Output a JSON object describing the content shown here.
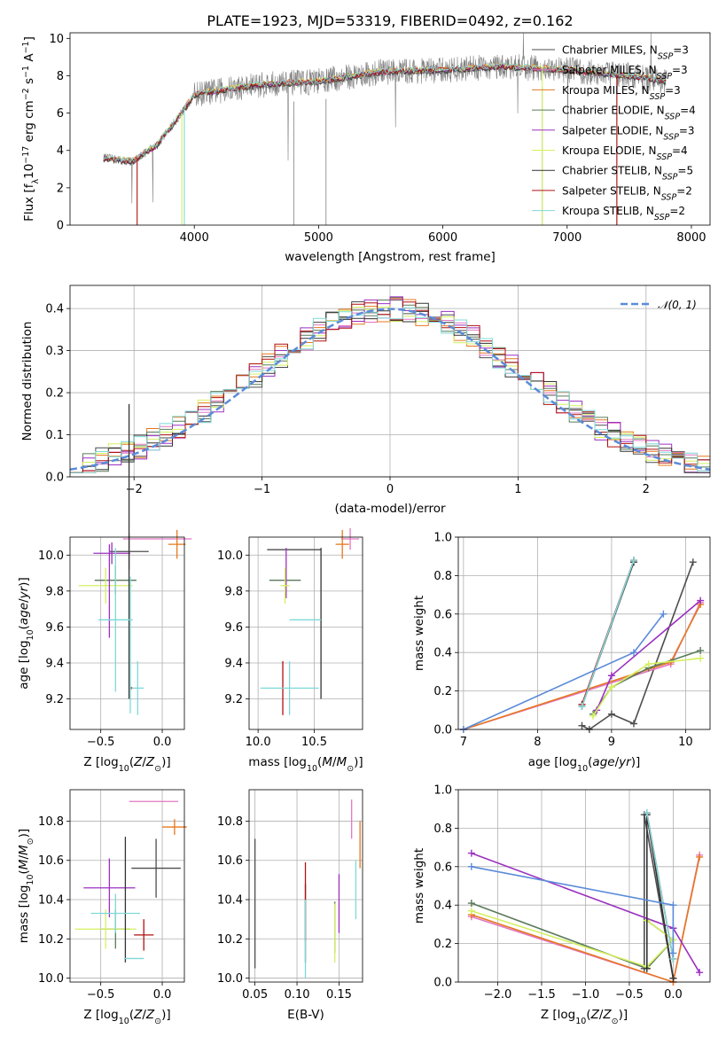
{
  "figure": {
    "title": "PLATE=1923, MJD=53319, FIBERID=0492, z=0.162"
  },
  "models": [
    {
      "name": "Chabrier MILES",
      "nssp": 3,
      "color": "#4d4d4d"
    },
    {
      "name": "Salpeter MILES",
      "nssp": 3,
      "color": "#e377c2"
    },
    {
      "name": "Kroupa MILES",
      "nssp": 3,
      "color": "#e6781e"
    },
    {
      "name": "Chabrier ELODIE",
      "nssp": 4,
      "color": "#5a7a5a"
    },
    {
      "name": "Salpeter ELODIE",
      "nssp": 3,
      "color": "#9b30c0"
    },
    {
      "name": "Kroupa ELODIE",
      "nssp": 4,
      "color": "#d4f060"
    },
    {
      "name": "Chabrier STELIB",
      "nssp": 5,
      "color": "#333333"
    },
    {
      "name": "Salpeter STELIB",
      "nssp": 2,
      "color": "#b01010"
    },
    {
      "name": "Kroupa STELIB",
      "nssp": 2,
      "color": "#7fd8d8"
    }
  ],
  "chart_data": [
    {
      "id": "spectrum",
      "type": "line",
      "title": "PLATE=1923, MJD=53319, FIBERID=0492, z=0.162",
      "xlabel": "wavelength [Angstrom, rest frame]",
      "ylabel": "Flux [f_λ 10^-17 erg cm^-2 s^-1 A^-1]",
      "xlim": [
        3000,
        8150
      ],
      "ylim": [
        0,
        10.3
      ],
      "xticks": [
        4000,
        5000,
        6000,
        7000,
        8000
      ],
      "yticks": [
        0,
        2,
        4,
        6,
        8,
        10
      ],
      "legend_position": "top-right",
      "legend": [
        "Chabrier MILES, N_SSP=3",
        "Salpeter MILES, N_SSP=3",
        "Kroupa MILES, N_SSP=3",
        "Chabrier ELODIE, N_SSP=4",
        "Salpeter ELODIE, N_SSP=3",
        "Kroupa ELODIE, N_SSP=4",
        "Chabrier STELIB, N_SSP=5",
        "Salpeter STELIB, N_SSP=2",
        "Kroupa STELIB, N_SSP=2"
      ],
      "data_continuum": {
        "x": [
          3270,
          3500,
          3700,
          3900,
          4000,
          4200,
          4500,
          5000,
          5500,
          6000,
          6500,
          7000,
          7500,
          7800
        ],
        "y": [
          3.6,
          3.4,
          4.3,
          6.0,
          7.0,
          7.2,
          7.5,
          7.7,
          8.2,
          8.3,
          8.5,
          8.3,
          8.0,
          7.7
        ]
      },
      "model_cut_lines": [
        {
          "series": "Salpeter STELIB",
          "x": 3540
        },
        {
          "series": "Kroupa ELODIE",
          "x": 3900
        },
        {
          "series": "Kroupa STELIB",
          "x": 3920
        },
        {
          "series": "Kroupa ELODIE",
          "x": 6800
        },
        {
          "series": "Salpeter STELIB",
          "x": 7400
        }
      ]
    },
    {
      "id": "residuals",
      "type": "line",
      "xlabel": "(data-model)/error",
      "ylabel": "Normed distribution",
      "xlim": [
        -2.5,
        2.5
      ],
      "ylim": [
        0,
        0.455
      ],
      "xticks": [
        -2,
        -1,
        0,
        1,
        2
      ],
      "yticks": [
        0.0,
        0.1,
        0.2,
        0.3,
        0.4
      ],
      "grid": true,
      "legend_position": "top-right",
      "reference_curve": {
        "name": "N(0,1)",
        "mean": 0,
        "sigma": 1,
        "color": "#5b8bd9"
      },
      "bin_width": 0.1,
      "bins_start": -2.5
    },
    {
      "id": "age_vs_Z",
      "type": "scatter",
      "xlabel": "Z [log10(Z/Z_sun)]",
      "ylabel": "age  [log10(age/yr)]",
      "xlim": [
        -0.75,
        0.18
      ],
      "ylim": [
        9.03,
        10.1
      ],
      "xticks": [
        -0.5,
        0.0
      ],
      "yticks": [
        9.2,
        9.4,
        9.6,
        9.8,
        10.0
      ],
      "grid": true,
      "points": [
        {
          "series": "Chabrier MILES",
          "x": -0.27,
          "y": 10.02,
          "xerr": 0.16,
          "yerr": 0.1
        },
        {
          "series": "Salpeter MILES",
          "x": -0.04,
          "y": 10.09,
          "xerr": 0.28,
          "yerr": 0.0
        },
        {
          "series": "Kroupa MILES",
          "x": 0.12,
          "y": 10.06,
          "xerr": 0.07,
          "yerr": 0.08
        },
        {
          "series": "Chabrier ELODIE",
          "x": -0.38,
          "y": 9.86,
          "xerr": 0.17,
          "yerr": 0.08
        },
        {
          "series": "Salpeter ELODIE",
          "x": -0.41,
          "y": 10.01,
          "xerr": 0.15,
          "yerr": 0.06
        },
        {
          "series": "Kroupa ELODIE",
          "x": -0.46,
          "y": 9.83,
          "xerr": 0.22,
          "yerr": 0.1
        },
        {
          "series": "Chabrier STELIB",
          "x": -0.27,
          "y": 10.02,
          "xerr": 0.0,
          "yerr": 0.82
        },
        {
          "series": "Salpeter STELIB",
          "x": -0.25,
          "y": 9.26,
          "xerr": 0.0,
          "yerr": 0.0
        },
        {
          "series": "Kroupa STELIB",
          "x": -0.2,
          "y": 9.26,
          "xerr": 0.05,
          "yerr": 0.15
        },
        {
          "series": "Salpeter ELODIE",
          "x": -0.43,
          "y": 9.8,
          "xerr": 0.0,
          "yerr": 0.26
        },
        {
          "series": "Kroupa STELIB",
          "x": -0.38,
          "y": 9.64,
          "xerr": 0.14,
          "yerr": 0.4
        },
        {
          "series": "Kroupa STELIB",
          "x": -0.26,
          "y": 9.5,
          "xerr": 0.0,
          "yerr": 0.38
        }
      ]
    },
    {
      "id": "age_vs_mass",
      "type": "scatter",
      "xlabel": "mass [log10(M/M_sun)]",
      "ylabel": "",
      "xlim": [
        9.92,
        10.93
      ],
      "ylim": [
        9.03,
        10.1
      ],
      "xticks": [
        10.0,
        10.5
      ],
      "yticks": [
        9.2,
        9.4,
        9.6,
        9.8,
        10.0
      ],
      "grid": true,
      "points": [
        {
          "series": "Chabrier MILES",
          "x": 10.32,
          "y": 10.03,
          "xerr": 0.24,
          "yerr": 0.0
        },
        {
          "series": "Salpeter MILES",
          "x": 10.82,
          "y": 10.09,
          "xerr": 0.08,
          "yerr": 0.06
        },
        {
          "series": "Kroupa MILES",
          "x": 10.75,
          "y": 10.06,
          "xerr": 0.06,
          "yerr": 0.08
        },
        {
          "series": "Chabrier ELODIE",
          "x": 10.24,
          "y": 9.86,
          "xerr": 0.14,
          "yerr": 0.0
        },
        {
          "series": "Salpeter ELODIE",
          "x": 10.25,
          "y": 9.9,
          "xerr": 0.0,
          "yerr": 0.14
        },
        {
          "series": "Kroupa ELODIE",
          "x": 10.24,
          "y": 9.83,
          "xerr": 0.04,
          "yerr": 0.1
        },
        {
          "series": "Chabrier STELIB",
          "x": 10.56,
          "y": 9.62,
          "xerr": 0.0,
          "yerr": 0.42
        },
        {
          "series": "Salpeter STELIB",
          "x": 10.22,
          "y": 9.26,
          "xerr": 0.0,
          "yerr": 0.15
        },
        {
          "series": "Kroupa STELIB",
          "x": 10.28,
          "y": 9.26,
          "xerr": 0.26,
          "yerr": 0.15
        },
        {
          "series": "Kroupa STELIB",
          "x": 10.42,
          "y": 9.64,
          "xerr": 0.14,
          "yerr": 0.0
        }
      ]
    },
    {
      "id": "massweight_vs_age",
      "type": "line",
      "xlabel": "age  [log10(age/yr)]",
      "ylabel": "mass weight",
      "xlim": [
        6.93,
        10.33
      ],
      "ylim": [
        0,
        1.0
      ],
      "xticks": [
        7,
        8,
        9,
        10
      ],
      "yticks": [
        0.0,
        0.2,
        0.4,
        0.6,
        0.8,
        1.0
      ],
      "grid": true,
      "series": [
        {
          "name": "Chabrier MILES",
          "x": [
            8.6,
            8.7,
            9.0,
            9.3,
            10.1
          ],
          "y": [
            0.02,
            0.0,
            0.08,
            0.03,
            0.87
          ]
        },
        {
          "name": "Salpeter MILES",
          "x": [
            7.0,
            9.8,
            10.2
          ],
          "y": [
            0.0,
            0.34,
            0.66
          ]
        },
        {
          "name": "Kroupa MILES",
          "x": [
            7.0,
            9.8,
            10.2
          ],
          "y": [
            0.0,
            0.35,
            0.65
          ]
        },
        {
          "name": "Chabrier ELODIE",
          "x": [
            8.75,
            9.0,
            9.5,
            10.2
          ],
          "y": [
            0.08,
            0.22,
            0.32,
            0.41
          ]
        },
        {
          "name": "Salpeter ELODIE",
          "x": [
            8.8,
            9.0,
            10.2
          ],
          "y": [
            0.1,
            0.28,
            0.67
          ]
        },
        {
          "name": "Kroupa ELODIE",
          "x": [
            8.75,
            9.0,
            9.5,
            10.2
          ],
          "y": [
            0.07,
            0.22,
            0.34,
            0.37
          ]
        },
        {
          "name": "Chabrier STELIB",
          "x": [
            8.6,
            9.3
          ],
          "y": [
            0.12,
            0.87
          ]
        },
        {
          "name": "Salpeter STELIB",
          "x": [
            8.6,
            9.3
          ],
          "y": [
            0.13,
            0.88
          ]
        },
        {
          "name": "Kroupa STELIB",
          "x": [
            8.6,
            9.3
          ],
          "y": [
            0.12,
            0.88
          ]
        },
        {
          "name": "Blue model",
          "x": [
            7.0,
            9.3,
            9.7
          ],
          "y": [
            0.0,
            0.4,
            0.6
          ]
        }
      ]
    },
    {
      "id": "mass_vs_Z",
      "type": "scatter",
      "xlabel": "Z [log10(Z/Z_sun)]",
      "ylabel": "mass [log10(M/M_sun)]",
      "xlim": [
        -0.75,
        0.18
      ],
      "ylim": [
        9.98,
        10.96
      ],
      "xticks": [
        -0.5,
        0.0
      ],
      "yticks": [
        10.0,
        10.2,
        10.4,
        10.6,
        10.8
      ],
      "grid": true,
      "points": [
        {
          "series": "Chabrier MILES",
          "x": -0.05,
          "y": 10.56,
          "xerr": 0.2,
          "yerr": 0.15
        },
        {
          "series": "Salpeter MILES",
          "x": -0.07,
          "y": 10.9,
          "xerr": 0.2,
          "yerr": 0.0
        },
        {
          "series": "Kroupa MILES",
          "x": 0.1,
          "y": 10.77,
          "xerr": 0.1,
          "yerr": 0.04
        },
        {
          "series": "Chabrier ELODIE",
          "x": -0.38,
          "y": 10.25,
          "xerr": 0.12,
          "yerr": 0.1
        },
        {
          "series": "Salpeter ELODIE",
          "x": -0.43,
          "y": 10.46,
          "xerr": 0.21,
          "yerr": 0.15
        },
        {
          "series": "Kroupa ELODIE",
          "x": -0.46,
          "y": 10.25,
          "xerr": 0.25,
          "yerr": 0.1
        },
        {
          "series": "Chabrier STELIB",
          "x": -0.3,
          "y": 10.4,
          "xerr": 0.0,
          "yerr": 0.32
        },
        {
          "series": "Salpeter STELIB",
          "x": -0.15,
          "y": 10.22,
          "xerr": 0.08,
          "yerr": 0.08
        },
        {
          "series": "Kroupa STELIB",
          "x": -0.23,
          "y": 10.1,
          "xerr": 0.08,
          "yerr": 0.0
        },
        {
          "series": "Kroupa STELIB",
          "x": -0.38,
          "y": 10.33,
          "xerr": 0.2,
          "yerr": 0.1
        }
      ]
    },
    {
      "id": "mass_vs_EBV",
      "type": "scatter",
      "xlabel": "E(B-V)",
      "ylabel": "",
      "xlim": [
        0.043,
        0.178
      ],
      "ylim": [
        9.98,
        10.96
      ],
      "xticks": [
        0.05,
        0.1,
        0.15
      ],
      "yticks": [
        10.0,
        10.2,
        10.4,
        10.6,
        10.8
      ],
      "grid": true,
      "points": [
        {
          "series": "Chabrier MILES",
          "x": 0.05,
          "y": 10.38,
          "xerr": 0.0,
          "yerr": 0.33
        },
        {
          "series": "Salpeter MILES",
          "x": 0.165,
          "y": 10.81,
          "xerr": 0.0,
          "yerr": 0.1
        },
        {
          "series": "Kroupa MILES",
          "x": 0.175,
          "y": 10.68,
          "xerr": 0.0,
          "yerr": 0.12
        },
        {
          "series": "Chabrier ELODIE",
          "x": 0.145,
          "y": 10.26,
          "xerr": 0.0,
          "yerr": 0.13
        },
        {
          "series": "Salpeter ELODIE",
          "x": 0.15,
          "y": 10.38,
          "xerr": 0.0,
          "yerr": 0.15
        },
        {
          "series": "Kroupa ELODIE",
          "x": 0.145,
          "y": 10.23,
          "xerr": 0.0,
          "yerr": 0.15
        },
        {
          "series": "Chabrier STELIB",
          "x": 0.11,
          "y": 10.28,
          "xerr": 0.0,
          "yerr": 0.2
        },
        {
          "series": "Salpeter STELIB",
          "x": 0.11,
          "y": 10.39,
          "xerr": 0.0,
          "yerr": 0.2
        },
        {
          "series": "Kroupa STELIB",
          "x": 0.11,
          "y": 10.2,
          "xerr": 0.0,
          "yerr": 0.2
        },
        {
          "series": "Kroupa STELIB",
          "x": 0.17,
          "y": 10.45,
          "xerr": 0.0,
          "yerr": 0.15
        }
      ]
    },
    {
      "id": "massweight_vs_Z",
      "type": "line",
      "xlabel": "Z [log10(Z/Z_sun)]",
      "ylabel": "mass weight",
      "xlim": [
        -2.45,
        0.42
      ],
      "ylim": [
        0,
        1.0
      ],
      "xticks": [
        -2.0,
        -1.5,
        -1.0,
        -0.5,
        0.0
      ],
      "yticks": [
        0.0,
        0.2,
        0.4,
        0.6,
        0.8,
        1.0
      ],
      "grid": true,
      "series": [
        {
          "name": "Chabrier MILES",
          "x": [
            -0.33,
            -0.33,
            0.0
          ],
          "y": [
            0.07,
            0.87,
            0.02
          ]
        },
        {
          "name": "Salpeter MILES",
          "x": [
            -2.3,
            0.0,
            0.3
          ],
          "y": [
            0.34,
            0.0,
            0.66
          ]
        },
        {
          "name": "Kroupa MILES",
          "x": [
            -2.3,
            0.0,
            0.3
          ],
          "y": [
            0.35,
            0.0,
            0.65
          ]
        },
        {
          "name": "Chabrier ELODIE",
          "x": [
            -2.3,
            -0.3,
            0.0,
            -0.3
          ],
          "y": [
            0.41,
            0.07,
            0.22,
            0.32
          ]
        },
        {
          "name": "Salpeter ELODIE",
          "x": [
            -2.3,
            0.0,
            0.3
          ],
          "y": [
            0.67,
            0.28,
            0.05
          ]
        },
        {
          "name": "Kroupa ELODIE",
          "x": [
            -2.3,
            -0.3,
            0.0,
            -0.3
          ],
          "y": [
            0.37,
            0.08,
            0.22,
            0.32
          ]
        },
        {
          "name": "Chabrier STELIB",
          "x": [
            -0.3,
            -0.3,
            0.0
          ],
          "y": [
            0.07,
            0.87,
            0.02
          ]
        },
        {
          "name": "Salpeter STELIB",
          "x": [
            -0.3,
            0.0
          ],
          "y": [
            0.88,
            0.12
          ]
        },
        {
          "name": "Kroupa STELIB",
          "x": [
            -0.3,
            0.0
          ],
          "y": [
            0.88,
            0.12
          ]
        },
        {
          "name": "Blue model",
          "x": [
            -2.3,
            0.0,
            0.0
          ],
          "y": [
            0.6,
            0.4,
            0.15
          ]
        }
      ]
    }
  ],
  "labels": {
    "spec_ylabel_pre": "Flux [f",
    "spec_ylabel_post": "10",
    "n_ssp_prefix": "N",
    "n_ssp_sub": "SSP",
    "norm_legend": "𝒩(0, 1)"
  },
  "extra_colors": {
    "blue_model": "#5b8bd9",
    "data": "#7f7f7f"
  }
}
